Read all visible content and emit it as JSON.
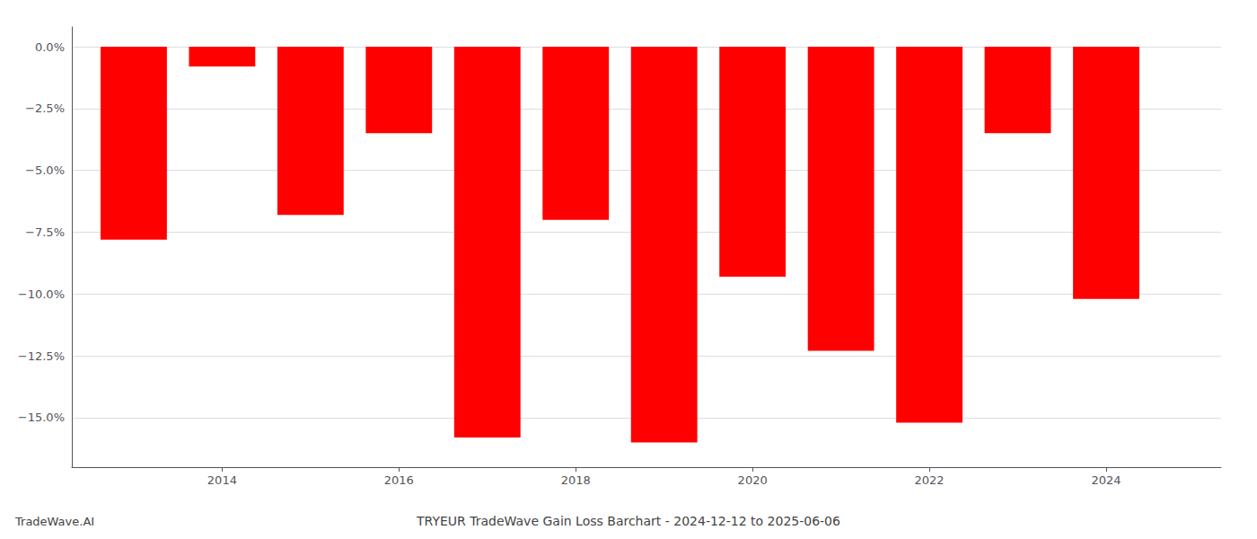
{
  "chart_data": {
    "type": "bar",
    "title": "TRYEUR TradeWave Gain Loss Barchart - 2024-12-12 to 2025-06-06",
    "annotations": [
      "TradeWave.AI"
    ],
    "x": [
      2013,
      2014,
      2015,
      2016,
      2017,
      2018,
      2019,
      2020,
      2021,
      2022,
      2023,
      2024
    ],
    "values": [
      -7.8,
      -0.8,
      -6.8,
      -3.5,
      -15.8,
      -7.0,
      -16.0,
      -9.3,
      -12.3,
      -15.2,
      -3.5,
      -10.2
    ],
    "color": "#ff0000",
    "xlim": [
      2012.3,
      2025.3
    ],
    "xticks": [
      2014,
      2016,
      2018,
      2020,
      2022,
      2024
    ],
    "ylim": [
      -17.0,
      0.8
    ],
    "yticks": [
      {
        "value": 0.0,
        "label": "0.0%"
      },
      {
        "value": -2.5,
        "label": "−2.5%"
      },
      {
        "value": -5.0,
        "label": "−5.0%"
      },
      {
        "value": -7.5,
        "label": "−7.5%"
      },
      {
        "value": -10.0,
        "label": "−10.0%"
      },
      {
        "value": -12.5,
        "label": "−12.5%"
      },
      {
        "value": -15.0,
        "label": "−15.0%"
      }
    ],
    "grid": true
  }
}
